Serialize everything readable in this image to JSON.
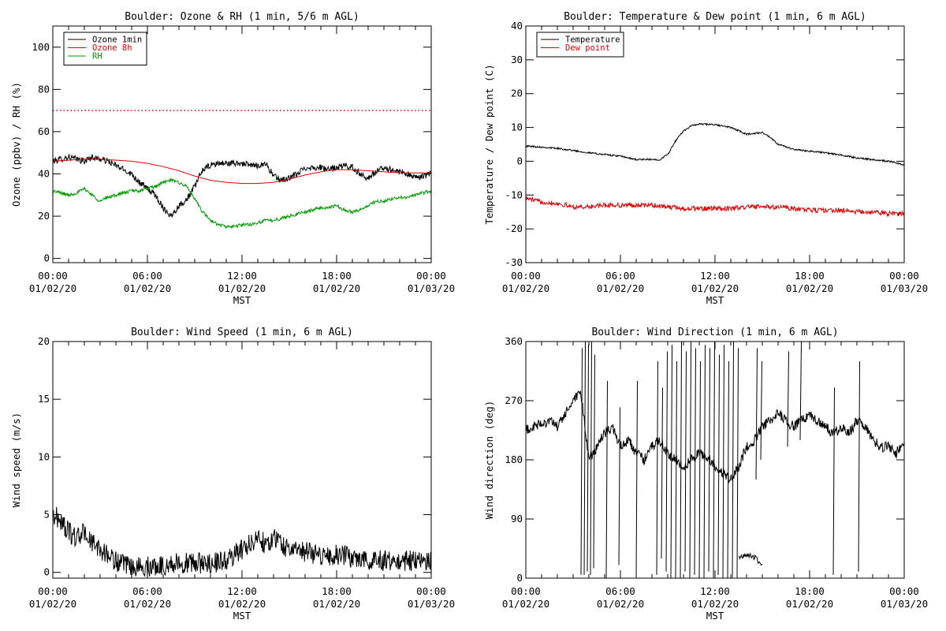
{
  "colors": {
    "black": "#000000",
    "red": "#dd0000",
    "green": "#009900"
  },
  "chart_data": [
    {
      "type": "line",
      "title": "Boulder: Ozone & RH (1 min, 5/6 m AGL)",
      "xlabel": "MST",
      "ylabel": "Ozone (ppbv) / RH (%)",
      "x_range_hours": [
        0,
        24
      ],
      "x_tick_labels": [
        {
          "time": "00:00",
          "date": "01/02/20"
        },
        {
          "time": "06:00",
          "date": "01/02/20"
        },
        {
          "time": "12:00",
          "date": "01/02/20"
        },
        {
          "time": "18:00",
          "date": "01/02/20"
        },
        {
          "time": "00:00",
          "date": "01/03/20"
        }
      ],
      "ylim": [
        -2,
        110
      ],
      "y_ticks": [
        0,
        20,
        40,
        60,
        80,
        100
      ],
      "legend": {
        "placement": "top-left",
        "entries": [
          "Ozone 1min",
          "Ozone 8h",
          "RH"
        ]
      },
      "reference_line": {
        "y": 70,
        "style": "dotted",
        "color": "#dd0000"
      },
      "series": [
        {
          "name": "Ozone 1min",
          "color": "#000000",
          "noise": 1.5,
          "x": [
            0,
            0.5,
            1,
            1.5,
            2,
            2.5,
            3,
            3.5,
            4,
            4.5,
            5,
            5.5,
            6,
            6.5,
            7,
            7.5,
            8,
            8.5,
            9,
            9.5,
            10,
            10.5,
            11,
            11.5,
            12,
            12.5,
            13,
            13.5,
            14,
            14.5,
            15,
            15.5,
            16,
            16.5,
            17,
            17.5,
            18,
            18.5,
            19,
            19.5,
            20,
            20.5,
            21,
            21.5,
            22,
            22.5,
            23,
            23.5,
            24
          ],
          "y": [
            46,
            47,
            48,
            47,
            46,
            48,
            47,
            46,
            44,
            42,
            40,
            36,
            33,
            30,
            24,
            20,
            25,
            28,
            34,
            42,
            44,
            45,
            45,
            45,
            45,
            44,
            44,
            45,
            39,
            37,
            38,
            40,
            43,
            43,
            43,
            42,
            43,
            44,
            43,
            40,
            38,
            41,
            43,
            42,
            41,
            40,
            38,
            39,
            40
          ]
        },
        {
          "name": "Ozone 8h",
          "color": "#dd0000",
          "noise": 0,
          "x": [
            0,
            1,
            2,
            3,
            4,
            5,
            6,
            7,
            8,
            9,
            10,
            11,
            12,
            13,
            14,
            15,
            16,
            17,
            18,
            19,
            20,
            21,
            22,
            23,
            24
          ],
          "y": [
            46,
            46.5,
            47,
            47,
            46.5,
            46,
            45,
            43.5,
            41.5,
            39,
            37,
            36,
            35.5,
            35.5,
            36,
            37.5,
            39.5,
            41,
            42,
            42,
            41.5,
            41,
            40.5,
            40.5,
            40.5
          ]
        },
        {
          "name": "RH",
          "color": "#009900",
          "noise": 0.8,
          "x": [
            0,
            0.5,
            1,
            1.5,
            2,
            2.5,
            3,
            3.5,
            4,
            4.5,
            5,
            5.5,
            6,
            6.5,
            7,
            7.5,
            8,
            8.5,
            9,
            9.5,
            10,
            10.5,
            11,
            11.5,
            12,
            12.5,
            13,
            13.5,
            14,
            14.5,
            15,
            15.5,
            16,
            16.5,
            17,
            17.5,
            18,
            18.5,
            19,
            19.5,
            20,
            20.5,
            21,
            21.5,
            22,
            22.5,
            23,
            23.5,
            24
          ],
          "y": [
            32,
            31,
            30,
            31,
            33,
            30,
            27,
            29,
            30,
            31,
            32,
            32,
            33,
            34,
            36,
            37,
            36,
            34,
            28,
            22,
            18,
            16,
            15,
            15,
            16,
            16,
            17,
            18,
            18,
            19,
            20,
            21,
            22,
            23,
            24,
            24,
            25,
            23,
            22,
            23,
            25,
            27,
            27,
            28,
            29,
            29,
            30,
            31,
            32
          ]
        }
      ]
    },
    {
      "type": "line",
      "title": "Boulder: Temperature & Dew point (1 min, 6 m AGL)",
      "xlabel": "MST",
      "ylabel": "Temperature / Dew point (C)",
      "x_range_hours": [
        0,
        24
      ],
      "x_tick_labels": [
        {
          "time": "00:00",
          "date": "01/02/20"
        },
        {
          "time": "06:00",
          "date": "01/02/20"
        },
        {
          "time": "12:00",
          "date": "01/02/20"
        },
        {
          "time": "18:00",
          "date": "01/02/20"
        },
        {
          "time": "00:00",
          "date": "01/03/20"
        }
      ],
      "ylim": [
        -30,
        40
      ],
      "y_ticks": [
        -30,
        -20,
        -10,
        0,
        10,
        20,
        30,
        40
      ],
      "legend": {
        "placement": "top-left",
        "entries": [
          "Temperature",
          "Dew point"
        ]
      },
      "series": [
        {
          "name": "Temperature",
          "color": "#000000",
          "noise": 0.25,
          "x": [
            0,
            1,
            2,
            3,
            4,
            5,
            6,
            7,
            8,
            8.5,
            9,
            9.5,
            10,
            10.5,
            11,
            12,
            13,
            13.5,
            14,
            15,
            15.5,
            16,
            17,
            18,
            19,
            20,
            21,
            22,
            23,
            23.5,
            24
          ],
          "y": [
            4.5,
            4.2,
            3.8,
            3.2,
            2.5,
            2,
            1.5,
            0.5,
            0.5,
            0.5,
            2,
            6,
            9,
            10.5,
            11,
            10.8,
            10,
            9,
            8,
            8.5,
            7,
            5,
            3.5,
            3,
            2.5,
            1.8,
            1,
            0.5,
            0,
            -0.5,
            -1
          ]
        },
        {
          "name": "Dew point",
          "color": "#dd0000",
          "noise": 0.7,
          "x": [
            0,
            1,
            2,
            3,
            4,
            5,
            6,
            7,
            8,
            9,
            10,
            11,
            12,
            13,
            14,
            15,
            16,
            17,
            18,
            19,
            20,
            21,
            22,
            23,
            24
          ],
          "y": [
            -11,
            -12,
            -12.5,
            -13.5,
            -13.5,
            -13,
            -13,
            -13,
            -13,
            -13.5,
            -14,
            -14,
            -14,
            -14,
            -13.5,
            -13.5,
            -13.5,
            -14,
            -14.5,
            -14.5,
            -14.5,
            -15,
            -15,
            -15.5,
            -15.5
          ]
        }
      ]
    },
    {
      "type": "line",
      "title": "Boulder: Wind Speed (1 min, 6 m AGL)",
      "xlabel": "MST",
      "ylabel": "Wind speed (m/s)",
      "x_range_hours": [
        0,
        24
      ],
      "x_tick_labels": [
        {
          "time": "00:00",
          "date": "01/02/20"
        },
        {
          "time": "06:00",
          "date": "01/02/20"
        },
        {
          "time": "12:00",
          "date": "01/02/20"
        },
        {
          "time": "18:00",
          "date": "01/02/20"
        },
        {
          "time": "00:00",
          "date": "01/03/20"
        }
      ],
      "ylim": [
        -0.5,
        20
      ],
      "y_ticks": [
        0,
        5,
        10,
        15,
        20
      ],
      "series": [
        {
          "name": "",
          "color": "#000000",
          "noise": 0.9,
          "x": [
            0,
            0.5,
            1,
            1.5,
            2,
            2.5,
            3,
            3.5,
            4,
            4.5,
            5,
            6,
            7,
            8,
            9,
            10,
            11,
            11.5,
            12,
            12.5,
            13,
            13.5,
            14,
            14.5,
            15,
            16,
            17,
            18,
            19,
            20,
            21,
            22,
            23,
            24
          ],
          "y": [
            5,
            4.5,
            3.5,
            3,
            3.5,
            2.5,
            2,
            1.5,
            1,
            0.6,
            0.4,
            0.5,
            0.6,
            0.8,
            0.8,
            0.8,
            1,
            1.5,
            2,
            2.5,
            3,
            2.5,
            3,
            2.5,
            2,
            1.8,
            1.5,
            1.5,
            1.3,
            1.2,
            1,
            1,
            1,
            1
          ]
        }
      ]
    },
    {
      "type": "line",
      "title": "Boulder: Wind Direction (1 min, 6 m AGL)",
      "xlabel": "MST",
      "ylabel": "Wind direction (deg)",
      "x_range_hours": [
        0,
        24
      ],
      "x_tick_labels": [
        {
          "time": "00:00",
          "date": "01/02/20"
        },
        {
          "time": "06:00",
          "date": "01/02/20"
        },
        {
          "time": "12:00",
          "date": "01/02/20"
        },
        {
          "time": "18:00",
          "date": "01/02/20"
        },
        {
          "time": "00:00",
          "date": "01/03/20"
        }
      ],
      "ylim": [
        0,
        360
      ],
      "y_ticks": [
        0,
        90,
        180,
        270,
        360
      ],
      "series": [
        {
          "name": "",
          "color": "#000000",
          "noise": 8,
          "x": [
            0,
            0.5,
            1,
            1.5,
            2,
            2.5,
            3,
            3.5,
            4,
            4.5,
            5,
            5.5,
            6,
            6.5,
            7,
            7.5,
            8,
            8.5,
            9,
            9.5,
            10,
            10.5,
            11,
            11.5,
            12,
            12.5,
            13,
            13.5,
            14,
            14.5,
            15,
            15.5,
            16,
            16.5,
            17,
            17.5,
            18,
            18.5,
            19,
            19.5,
            20,
            20.5,
            21,
            21.5,
            22,
            22.5,
            23,
            23.5,
            24
          ],
          "y": [
            225,
            230,
            235,
            240,
            230,
            250,
            270,
            280,
            180,
            200,
            220,
            230,
            200,
            210,
            190,
            180,
            200,
            210,
            190,
            180,
            170,
            180,
            190,
            185,
            170,
            160,
            150,
            170,
            200,
            210,
            230,
            240,
            250,
            240,
            230,
            240,
            250,
            240,
            230,
            220,
            230,
            220,
            240,
            230,
            210,
            200,
            200,
            190,
            210
          ]
        },
        {
          "name": "",
          "color": "#000000",
          "noise": 4,
          "x": [
            13.5,
            13.8,
            14.2,
            14.6,
            15
          ],
          "y": [
            30,
            35,
            35,
            30,
            20
          ]
        }
      ],
      "spikes": [
        {
          "x": 3.5,
          "bottom": 5,
          "top": 350
        },
        {
          "x": 3.7,
          "bottom": 5,
          "top": 360
        },
        {
          "x": 3.9,
          "bottom": 10,
          "top": 355
        },
        {
          "x": 4.1,
          "bottom": 5,
          "top": 360
        },
        {
          "x": 4.3,
          "bottom": 15,
          "top": 340
        },
        {
          "x": 5.1,
          "bottom": 0,
          "top": 300
        },
        {
          "x": 5.9,
          "bottom": 20,
          "top": 260
        },
        {
          "x": 7.0,
          "bottom": 0,
          "top": 300
        },
        {
          "x": 8.3,
          "bottom": 5,
          "top": 330
        },
        {
          "x": 8.6,
          "bottom": 30,
          "top": 290
        },
        {
          "x": 8.9,
          "bottom": 10,
          "top": 345
        },
        {
          "x": 9.2,
          "bottom": 0,
          "top": 355
        },
        {
          "x": 9.5,
          "bottom": 0,
          "top": 330
        },
        {
          "x": 9.8,
          "bottom": 0,
          "top": 360
        },
        {
          "x": 10.1,
          "bottom": 10,
          "top": 345
        },
        {
          "x": 10.4,
          "bottom": 0,
          "top": 360
        },
        {
          "x": 10.7,
          "bottom": 5,
          "top": 350
        },
        {
          "x": 11.0,
          "bottom": 0,
          "top": 330
        },
        {
          "x": 11.3,
          "bottom": 0,
          "top": 355
        },
        {
          "x": 11.6,
          "bottom": 10,
          "top": 350
        },
        {
          "x": 11.9,
          "bottom": 0,
          "top": 360
        },
        {
          "x": 12.2,
          "bottom": 5,
          "top": 340
        },
        {
          "x": 12.5,
          "bottom": 0,
          "top": 355
        },
        {
          "x": 12.8,
          "bottom": 0,
          "top": 330
        },
        {
          "x": 13.1,
          "bottom": 0,
          "top": 360
        },
        {
          "x": 13.4,
          "bottom": 0,
          "top": 350
        },
        {
          "x": 14.6,
          "bottom": 150,
          "top": 350
        },
        {
          "x": 14.9,
          "bottom": 180,
          "top": 330
        },
        {
          "x": 16.6,
          "bottom": 200,
          "top": 345
        },
        {
          "x": 17.4,
          "bottom": 210,
          "top": 360
        },
        {
          "x": 19.5,
          "bottom": 5,
          "top": 290
        },
        {
          "x": 21.1,
          "bottom": 10,
          "top": 330
        }
      ]
    }
  ]
}
